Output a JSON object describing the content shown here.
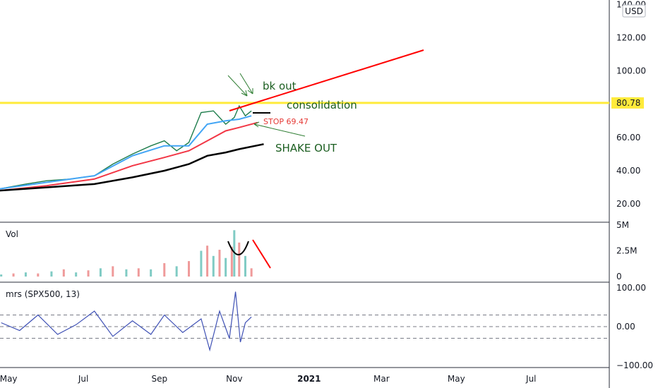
{
  "currency": "USD",
  "price_tag": "80.78",
  "chart_data": [
    {
      "type": "line",
      "title": "",
      "ylim": [
        12,
        141
      ],
      "y_ticks": [
        "140.00",
        "120.00",
        "100.00",
        "80.00",
        "60.00",
        "40.00",
        "20.00"
      ],
      "x_ticks": [
        "May",
        "Jul",
        "Sep",
        "Nov",
        "2021",
        "Mar",
        "May",
        "Jul"
      ],
      "horizontal_line": 80.78,
      "series": [
        {
          "kind": "price",
          "x": [
            "2020-04-23",
            "2020-05-15",
            "2020-06-01",
            "2020-06-20",
            "2020-07-10",
            "2020-07-25",
            "2020-08-10",
            "2020-08-25",
            "2020-09-05",
            "2020-09-15",
            "2020-09-25",
            "2020-10-05",
            "2020-10-15",
            "2020-10-25",
            "2020-11-01",
            "2020-11-05",
            "2020-11-10",
            "2020-11-15"
          ],
          "values": [
            29,
            32,
            34,
            35,
            37,
            44,
            50,
            55,
            58,
            52,
            57,
            75,
            76,
            68,
            72,
            79,
            73,
            76
          ]
        },
        {
          "kind": "moving-average",
          "color": "#42a5f5",
          "x": [
            "2020-04-23",
            "2020-06-01",
            "2020-07-10",
            "2020-08-10",
            "2020-09-05",
            "2020-09-25",
            "2020-10-10",
            "2020-10-25",
            "2020-11-05",
            "2020-11-15"
          ],
          "values": [
            29,
            33,
            37,
            49,
            55,
            55,
            68,
            70,
            71,
            73
          ]
        },
        {
          "kind": "moving-average",
          "color": "#f23645",
          "x": [
            "2020-04-23",
            "2020-06-01",
            "2020-07-10",
            "2020-08-10",
            "2020-09-05",
            "2020-09-25",
            "2020-10-10",
            "2020-10-25",
            "2020-11-05",
            "2020-11-20"
          ],
          "values": [
            28,
            31,
            35,
            43,
            48,
            52,
            58,
            64,
            66,
            69
          ]
        },
        {
          "kind": "moving-average",
          "color": "#000000",
          "x": [
            "2020-04-23",
            "2020-06-01",
            "2020-07-10",
            "2020-08-10",
            "2020-09-05",
            "2020-09-25",
            "2020-10-10",
            "2020-10-25",
            "2020-11-05",
            "2020-11-25"
          ],
          "values": [
            28,
            30,
            32,
            36,
            40,
            44,
            49,
            51,
            53,
            56
          ]
        }
      ]
    },
    {
      "type": "bar",
      "label": "Vol",
      "ylim": [
        0,
        5000000
      ],
      "y_ticks": [
        "5M",
        "2.5M",
        "0"
      ],
      "x": [
        "2020-04-25",
        "2020-05-05",
        "2020-05-15",
        "2020-05-25",
        "2020-06-05",
        "2020-06-15",
        "2020-06-25",
        "2020-07-05",
        "2020-07-15",
        "2020-07-25",
        "2020-08-05",
        "2020-08-15",
        "2020-08-25",
        "2020-09-05",
        "2020-09-15",
        "2020-09-25",
        "2020-10-05",
        "2020-10-10",
        "2020-10-15",
        "2020-10-20",
        "2020-10-25",
        "2020-10-30",
        "2020-11-01",
        "2020-11-05",
        "2020-11-10",
        "2020-11-15"
      ],
      "values": [
        200000,
        300000,
        400000,
        300000,
        500000,
        700000,
        400000,
        600000,
        800000,
        1000000,
        700000,
        800000,
        700000,
        1300000,
        1000000,
        1500000,
        2500000,
        3000000,
        2000000,
        2600000,
        1800000,
        2900000,
        4500000,
        3300000,
        2000000,
        800000
      ]
    },
    {
      "type": "line",
      "label": "mrs (SPX500, 13)",
      "ylim": [
        -100,
        100
      ],
      "y_ticks": [
        "100.00",
        "0.00",
        "−100.00"
      ],
      "x": [
        "2020-04-25",
        "2020-05-10",
        "2020-05-25",
        "2020-06-10",
        "2020-06-25",
        "2020-07-10",
        "2020-07-25",
        "2020-08-10",
        "2020-08-25",
        "2020-09-05",
        "2020-09-20",
        "2020-10-05",
        "2020-10-12",
        "2020-10-20",
        "2020-10-28",
        "2020-11-02",
        "2020-11-06",
        "2020-11-10",
        "2020-11-15"
      ],
      "values": [
        10,
        -10,
        30,
        -20,
        5,
        40,
        -25,
        15,
        -20,
        30,
        -15,
        20,
        -60,
        40,
        -30,
        90,
        -40,
        10,
        25
      ]
    }
  ],
  "annotations": {
    "bk_out": "bk out",
    "consolidation": "consolidation",
    "stop": "STOP 69.47",
    "shake_out": "SHAKE OUT"
  }
}
